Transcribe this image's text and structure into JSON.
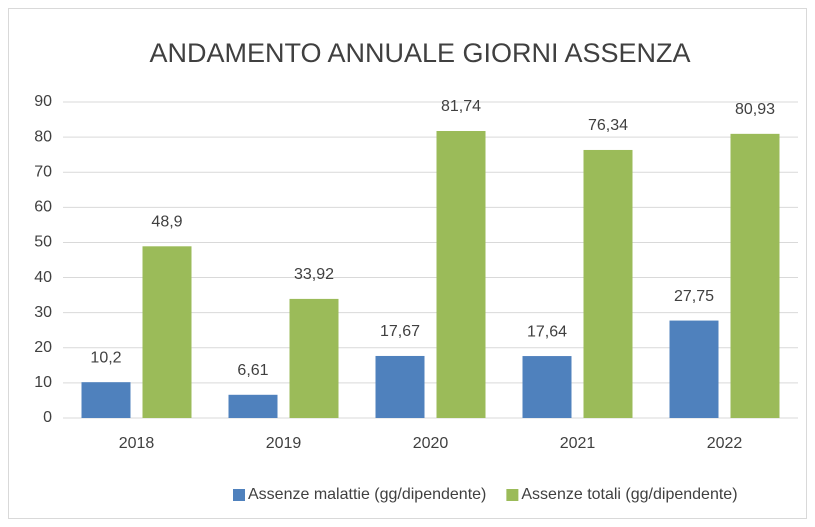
{
  "chart_data": {
    "type": "bar",
    "title": "ANDAMENTO ANNUALE GIORNI ASSENZA",
    "categories": [
      "2018",
      "2019",
      "2020",
      "2021",
      "2022"
    ],
    "series": [
      {
        "name": "Assenze malattie (gg/dipendente)",
        "color": "#4f81bd",
        "values": [
          10.2,
          6.61,
          17.67,
          17.64,
          27.75
        ],
        "value_labels": [
          "10,2",
          "6,61",
          "17,67",
          "17,64",
          "27,75"
        ]
      },
      {
        "name": "Assenze totali (gg/dipendente)",
        "color": "#9bbb59",
        "values": [
          48.9,
          33.92,
          81.74,
          76.34,
          80.93
        ],
        "value_labels": [
          "48,9",
          "33,92",
          "81,74",
          "76,34",
          "80,93"
        ]
      }
    ],
    "ylim": [
      0,
      90
    ],
    "yticks": [
      0,
      10,
      20,
      30,
      40,
      50,
      60,
      70,
      80,
      90
    ],
    "grid": true,
    "legend": "bottom"
  }
}
